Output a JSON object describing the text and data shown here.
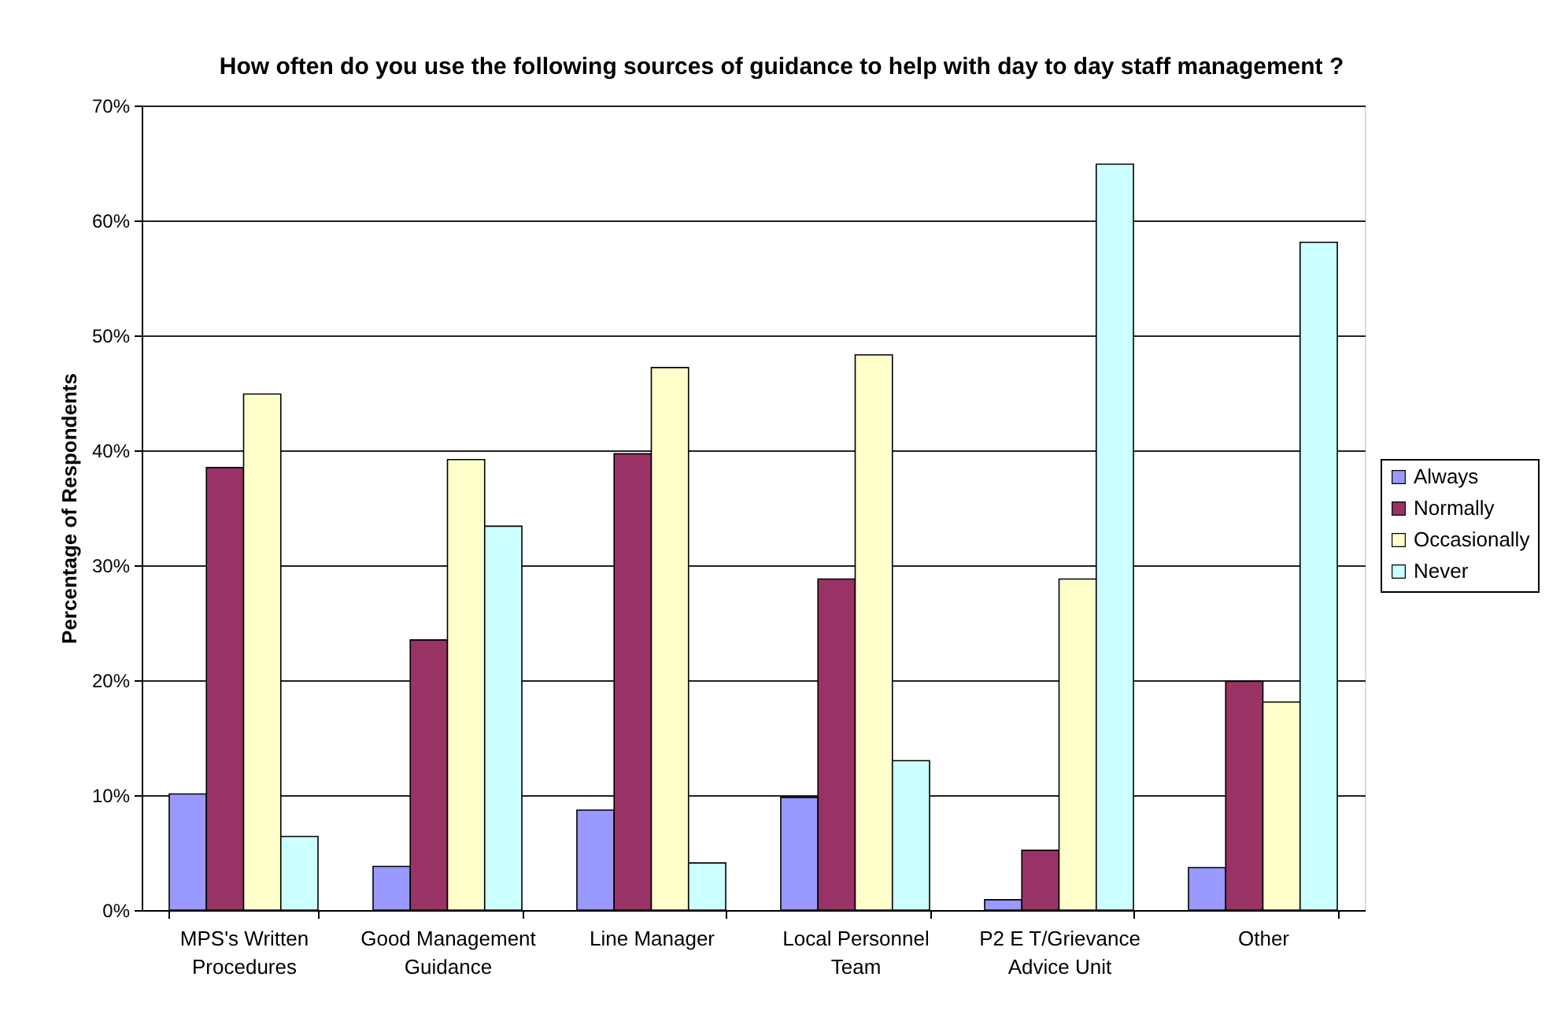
{
  "chart_data": {
    "type": "bar",
    "title": "How often do you use the following sources of guidance to help with day to day staff management ?",
    "ylabel": "Percentage of Respondents",
    "categories": [
      "MPS's Written Procedures",
      "Good Management Guidance",
      "Line Manager",
      "Local Personnel Team",
      "P2 E T/Grievance Advice Unit",
      "Other"
    ],
    "series": [
      {
        "name": "Always",
        "color": "#9999ff",
        "values": [
          10.1,
          3.8,
          8.7,
          9.8,
          0.9,
          3.7
        ]
      },
      {
        "name": "Normally",
        "color": "#993366",
        "values": [
          38.5,
          23.5,
          39.7,
          28.8,
          5.2,
          19.9
        ]
      },
      {
        "name": "Occasionally",
        "color": "#ffffcc",
        "values": [
          44.9,
          39.2,
          47.2,
          48.3,
          28.8,
          18.1
        ]
      },
      {
        "name": "Never",
        "color": "#ccffff",
        "values": [
          6.4,
          33.4,
          4.1,
          13.0,
          64.9,
          58.1
        ]
      }
    ],
    "ylim": [
      0,
      70
    ],
    "yticks": [
      {
        "value": 0,
        "label": "0%"
      },
      {
        "value": 10,
        "label": "10%"
      },
      {
        "value": 20,
        "label": "20%"
      },
      {
        "value": 30,
        "label": "30%"
      },
      {
        "value": 40,
        "label": "40%"
      },
      {
        "value": 50,
        "label": "50%"
      },
      {
        "value": 60,
        "label": "60%"
      },
      {
        "value": 70,
        "label": "70%"
      }
    ],
    "grid": "y",
    "legend": "right"
  }
}
